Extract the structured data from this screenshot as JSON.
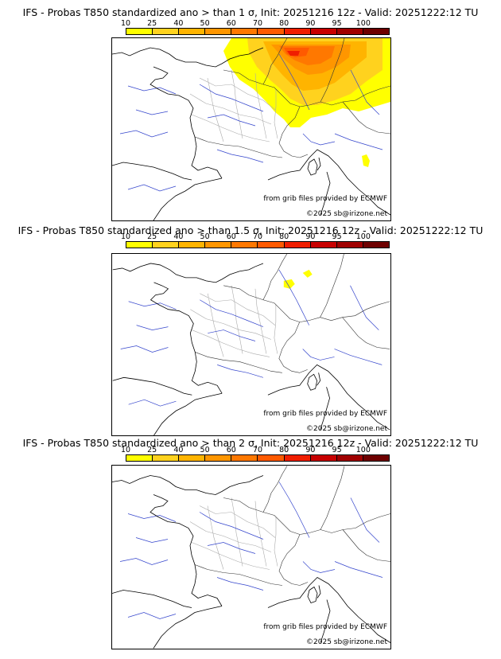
{
  "colorbar": {
    "labels": [
      "10",
      "25",
      "40",
      "50",
      "60",
      "70",
      "80",
      "90",
      "95",
      "100"
    ],
    "colors": [
      "#ffff00",
      "#ffd21e",
      "#ffb400",
      "#ff9600",
      "#ff7800",
      "#ff5a00",
      "#f01e00",
      "#c80000",
      "#a00000",
      "#6e0000"
    ]
  },
  "panels": [
    {
      "title": "IFS - Probas T850  standardized ano > than 1 σ, Init: 20251216 12z - Valid: 20251222:12 TU"
    },
    {
      "title": "IFS - Probas T850  standardized ano > than 1.5 σ, Init: 20251216 12z - Valid: 20251222:12 TU"
    },
    {
      "title": "IFS - Probas T850  standardized ano > than 2 σ, Init: 20251216 12z - Valid: 20251222:12 TU"
    }
  ],
  "credits": {
    "source": "from grib files provided by ECMWF",
    "copyright": "©2025 sb@irizone.net"
  }
}
